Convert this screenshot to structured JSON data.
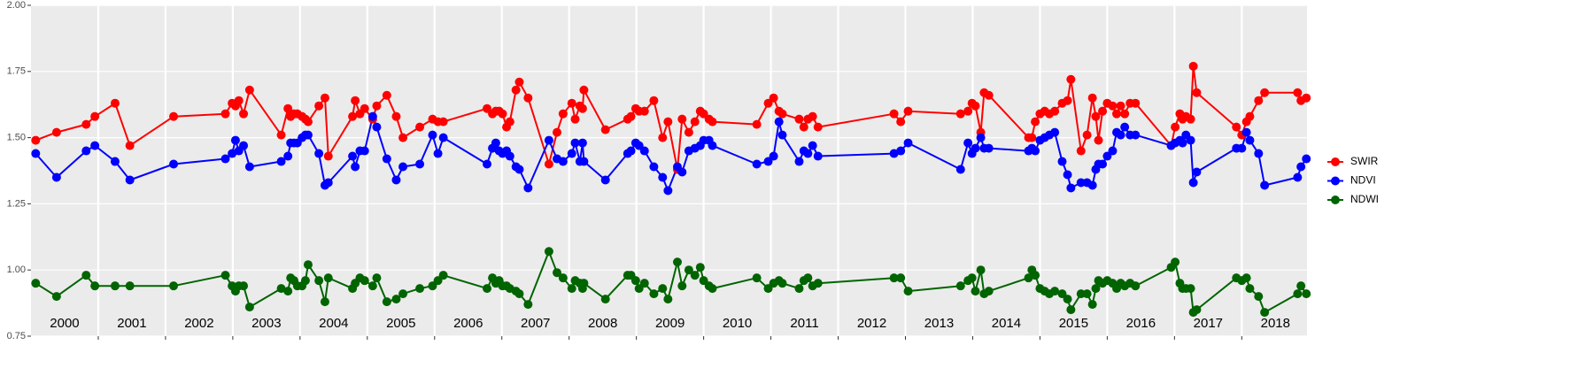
{
  "chart_data": {
    "type": "line",
    "x": [
      2000.07,
      2000.38,
      2000.82,
      2000.95,
      2001.25,
      2001.47,
      2002.12,
      2002.89,
      2002.99,
      2003.04,
      2003.09,
      2003.16,
      2003.25,
      2003.72,
      2003.82,
      2003.86,
      2003.91,
      2003.96,
      2004.03,
      2004.08,
      2004.12,
      2004.28,
      2004.37,
      2004.42,
      2004.78,
      2004.82,
      2004.89,
      2004.96,
      2005.08,
      2005.14,
      2005.29,
      2005.43,
      2005.53,
      2005.78,
      2005.97,
      2006.05,
      2006.13,
      2006.78,
      2006.86,
      2006.91,
      2006.96,
      2007.01,
      2007.07,
      2007.12,
      2007.21,
      2007.26,
      2007.39,
      2007.7,
      2007.82,
      2007.91,
      2008.04,
      2008.09,
      2008.16,
      2008.2,
      2008.22,
      2008.54,
      2008.87,
      2008.92,
      2008.99,
      2009.04,
      2009.12,
      2009.26,
      2009.39,
      2009.47,
      2009.61,
      2009.68,
      2009.78,
      2009.87,
      2009.95,
      2010.0,
      2010.08,
      2010.13,
      2010.79,
      2010.96,
      2011.04,
      2011.12,
      2011.17,
      2011.42,
      2011.49,
      2011.55,
      2011.62,
      2011.7,
      2012.83,
      2012.93,
      2013.04,
      2013.82,
      2013.93,
      2013.99,
      2014.04,
      2014.12,
      2014.17,
      2014.24,
      2014.83,
      2014.88,
      2014.93,
      2015.0,
      2015.07,
      2015.14,
      2015.22,
      2015.33,
      2015.41,
      2015.46,
      2015.61,
      2015.7,
      2015.78,
      2015.83,
      2015.87,
      2015.93,
      2016.0,
      2016.08,
      2016.14,
      2016.2,
      2016.26,
      2016.34,
      2016.42,
      2016.95,
      2017.01,
      2017.08,
      2017.12,
      2017.17,
      2017.24,
      2017.28,
      2017.33,
      2017.92,
      2018.0,
      2018.07,
      2018.12,
      2018.25,
      2018.34,
      2018.83,
      2018.88,
      2018.96
    ],
    "series": [
      {
        "name": "SWIR",
        "color": "#ff0000",
        "values": [
          1.49,
          1.52,
          1.55,
          1.58,
          1.63,
          1.47,
          1.58,
          1.59,
          1.63,
          1.62,
          1.64,
          1.59,
          1.68,
          1.51,
          1.61,
          1.58,
          1.59,
          1.59,
          1.58,
          1.57,
          1.56,
          1.62,
          1.65,
          1.43,
          1.58,
          1.64,
          1.59,
          1.61,
          1.57,
          1.62,
          1.66,
          1.58,
          1.5,
          1.54,
          1.57,
          1.56,
          1.56,
          1.61,
          1.59,
          1.6,
          1.6,
          1.59,
          1.54,
          1.56,
          1.68,
          1.71,
          1.65,
          1.4,
          1.52,
          1.59,
          1.63,
          1.57,
          1.62,
          1.61,
          1.68,
          1.53,
          1.57,
          1.58,
          1.61,
          1.6,
          1.6,
          1.64,
          1.5,
          1.56,
          1.38,
          1.57,
          1.52,
          1.56,
          1.6,
          1.59,
          1.57,
          1.56,
          1.55,
          1.63,
          1.65,
          1.6,
          1.59,
          1.57,
          1.54,
          1.57,
          1.58,
          1.54,
          1.59,
          1.56,
          1.6,
          1.59,
          1.6,
          1.63,
          1.62,
          1.52,
          1.67,
          1.66,
          1.5,
          1.5,
          1.56,
          1.59,
          1.6,
          1.59,
          1.6,
          1.63,
          1.64,
          1.72,
          1.45,
          1.51,
          1.65,
          1.58,
          1.49,
          1.6,
          1.63,
          1.62,
          1.59,
          1.62,
          1.59,
          1.63,
          1.63,
          1.47,
          1.54,
          1.59,
          1.57,
          1.58,
          1.57,
          1.77,
          1.67,
          1.54,
          1.51,
          1.56,
          1.58,
          1.64,
          1.67,
          1.67,
          1.64,
          1.65
        ]
      },
      {
        "name": "NDVI",
        "color": "#0000ff",
        "values": [
          1.44,
          1.35,
          1.45,
          1.47,
          1.41,
          1.34,
          1.4,
          1.42,
          1.44,
          1.49,
          1.45,
          1.47,
          1.39,
          1.41,
          1.43,
          1.48,
          1.48,
          1.48,
          1.5,
          1.51,
          1.51,
          1.44,
          1.32,
          1.33,
          1.43,
          1.39,
          1.45,
          1.45,
          1.58,
          1.54,
          1.42,
          1.34,
          1.39,
          1.4,
          1.51,
          1.44,
          1.5,
          1.4,
          1.46,
          1.48,
          1.45,
          1.44,
          1.45,
          1.43,
          1.39,
          1.38,
          1.31,
          1.49,
          1.42,
          1.41,
          1.44,
          1.48,
          1.41,
          1.48,
          1.41,
          1.34,
          1.44,
          1.45,
          1.48,
          1.47,
          1.45,
          1.39,
          1.35,
          1.3,
          1.39,
          1.37,
          1.45,
          1.46,
          1.47,
          1.49,
          1.49,
          1.47,
          1.4,
          1.41,
          1.43,
          1.56,
          1.51,
          1.41,
          1.45,
          1.44,
          1.47,
          1.43,
          1.44,
          1.45,
          1.48,
          1.38,
          1.48,
          1.44,
          1.46,
          1.5,
          1.46,
          1.46,
          1.45,
          1.46,
          1.45,
          1.49,
          1.5,
          1.51,
          1.52,
          1.41,
          1.36,
          1.31,
          1.33,
          1.33,
          1.32,
          1.38,
          1.4,
          1.4,
          1.43,
          1.45,
          1.52,
          1.51,
          1.54,
          1.51,
          1.51,
          1.47,
          1.48,
          1.49,
          1.48,
          1.51,
          1.49,
          1.33,
          1.37,
          1.46,
          1.46,
          1.52,
          1.49,
          1.44,
          1.32,
          1.35,
          1.39,
          1.42
        ]
      },
      {
        "name": "NDWI",
        "color": "#006400",
        "values": [
          0.95,
          0.9,
          0.98,
          0.94,
          0.94,
          0.94,
          0.94,
          0.98,
          0.94,
          0.92,
          0.94,
          0.94,
          0.86,
          0.93,
          0.92,
          0.97,
          0.96,
          0.94,
          0.94,
          0.96,
          1.02,
          0.96,
          0.88,
          0.97,
          0.93,
          0.95,
          0.97,
          0.96,
          0.94,
          0.97,
          0.88,
          0.89,
          0.91,
          0.93,
          0.94,
          0.96,
          0.98,
          0.93,
          0.97,
          0.95,
          0.96,
          0.94,
          0.94,
          0.93,
          0.92,
          0.91,
          0.87,
          1.07,
          0.99,
          0.97,
          0.93,
          0.96,
          0.95,
          0.93,
          0.95,
          0.89,
          0.98,
          0.98,
          0.96,
          0.93,
          0.95,
          0.91,
          0.93,
          0.89,
          1.03,
          0.94,
          1.0,
          0.98,
          1.01,
          0.96,
          0.94,
          0.93,
          0.97,
          0.93,
          0.95,
          0.96,
          0.95,
          0.93,
          0.96,
          0.97,
          0.94,
          0.95,
          0.97,
          0.97,
          0.92,
          0.94,
          0.96,
          0.97,
          0.92,
          1.0,
          0.91,
          0.92,
          0.97,
          1.0,
          0.98,
          0.93,
          0.92,
          0.91,
          0.92,
          0.91,
          0.89,
          0.85,
          0.91,
          0.91,
          0.87,
          0.93,
          0.96,
          0.95,
          0.96,
          0.95,
          0.93,
          0.95,
          0.94,
          0.95,
          0.94,
          1.01,
          1.03,
          0.95,
          0.93,
          0.93,
          0.93,
          0.84,
          0.85,
          0.97,
          0.96,
          0.97,
          0.93,
          0.9,
          0.84,
          0.91,
          0.94,
          0.91
        ]
      }
    ],
    "xlim": [
      2000,
      2018.97
    ],
    "xticks": [
      2001,
      2002,
      2003,
      2004,
      2005,
      2006,
      2007,
      2008,
      2009,
      2010,
      2011,
      2012,
      2013,
      2014,
      2015,
      2016,
      2017,
      2018
    ],
    "year_labels": [
      "2000",
      "2001",
      "2002",
      "2003",
      "2004",
      "2005",
      "2006",
      "2007",
      "2008",
      "2009",
      "2010",
      "2011",
      "2012",
      "2013",
      "2014",
      "2015",
      "2016",
      "2017",
      "2018"
    ],
    "ylim": [
      0.75,
      2
    ],
    "yticks": [
      0.75,
      {
        "value": 1,
        "label": "1.00"
      },
      1.25,
      {
        "value": 1.5,
        "label": "1.50"
      },
      {
        "value": 1.75,
        "label": "1.75"
      },
      {
        "value": 2,
        "label": "2.00"
      }
    ],
    "grid": true,
    "legend": "right"
  }
}
